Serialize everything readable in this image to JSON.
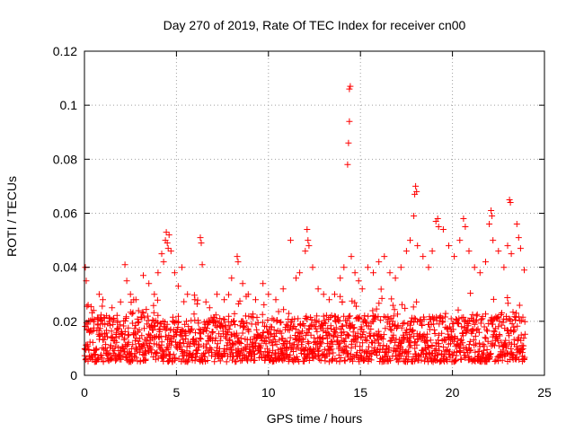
{
  "chart_data": {
    "type": "scatter",
    "title": "Day 270 of 2019, Rate Of TEC Index for receiver cn00",
    "xlabel": "GPS time / hours",
    "ylabel": "ROTI / TECUs",
    "xlim": [
      0,
      25
    ],
    "ylim": [
      0,
      0.12
    ],
    "x_ticks": [
      0,
      5,
      10,
      15,
      20,
      25
    ],
    "y_ticks": [
      0,
      0.02,
      0.04,
      0.06,
      0.08,
      0.1,
      0.12
    ],
    "x_tick_labels": [
      "0",
      "5",
      "10",
      "15",
      "20",
      "25"
    ],
    "y_tick_labels": [
      "0",
      "0.02",
      "0.04",
      "0.06",
      "0.08",
      "0.1",
      "0.12"
    ],
    "grid": true,
    "marker": "plus",
    "color": "#ff0000",
    "series": [
      {
        "name": "ROTI",
        "points": [
          [
            0.05,
            0.04
          ],
          [
            0.1,
            0.035
          ],
          [
            0.2,
            0.026
          ],
          [
            0.5,
            0.024
          ],
          [
            0.8,
            0.03
          ],
          [
            1.0,
            0.028
          ],
          [
            1.2,
            0.022
          ],
          [
            1.5,
            0.025
          ],
          [
            1.8,
            0.02
          ],
          [
            2.2,
            0.041
          ],
          [
            2.3,
            0.035
          ],
          [
            2.5,
            0.03
          ],
          [
            2.8,
            0.028
          ],
          [
            3.2,
            0.037
          ],
          [
            3.5,
            0.034
          ],
          [
            3.8,
            0.03
          ],
          [
            4.0,
            0.038
          ],
          [
            4.2,
            0.045
          ],
          [
            4.3,
            0.042
          ],
          [
            4.4,
            0.05
          ],
          [
            4.45,
            0.053
          ],
          [
            4.5,
            0.049
          ],
          [
            4.55,
            0.047
          ],
          [
            4.6,
            0.052
          ],
          [
            4.7,
            0.046
          ],
          [
            4.9,
            0.038
          ],
          [
            5.1,
            0.033
          ],
          [
            5.3,
            0.04
          ],
          [
            5.6,
            0.03
          ],
          [
            6.0,
            0.028
          ],
          [
            6.3,
            0.051
          ],
          [
            6.35,
            0.049
          ],
          [
            6.4,
            0.041
          ],
          [
            6.8,
            0.025
          ],
          [
            7.2,
            0.03
          ],
          [
            7.6,
            0.028
          ],
          [
            8.0,
            0.036
          ],
          [
            8.3,
            0.044
          ],
          [
            8.35,
            0.042
          ],
          [
            8.6,
            0.034
          ],
          [
            8.9,
            0.03
          ],
          [
            9.3,
            0.028
          ],
          [
            9.7,
            0.034
          ],
          [
            10.0,
            0.03
          ],
          [
            10.4,
            0.028
          ],
          [
            10.8,
            0.032
          ],
          [
            11.2,
            0.05
          ],
          [
            11.5,
            0.036
          ],
          [
            11.7,
            0.038
          ],
          [
            12.0,
            0.046
          ],
          [
            12.1,
            0.054
          ],
          [
            12.15,
            0.05
          ],
          [
            12.2,
            0.048
          ],
          [
            12.4,
            0.04
          ],
          [
            12.7,
            0.032
          ],
          [
            13.0,
            0.03
          ],
          [
            13.3,
            0.028
          ],
          [
            13.6,
            0.03
          ],
          [
            13.9,
            0.036
          ],
          [
            14.1,
            0.04
          ],
          [
            14.3,
            0.078
          ],
          [
            14.35,
            0.086
          ],
          [
            14.4,
            0.094
          ],
          [
            14.4,
            0.106
          ],
          [
            14.45,
            0.107
          ],
          [
            14.5,
            0.044
          ],
          [
            14.7,
            0.038
          ],
          [
            14.9,
            0.035
          ],
          [
            15.1,
            0.032
          ],
          [
            15.4,
            0.04
          ],
          [
            15.7,
            0.038
          ],
          [
            16.0,
            0.042
          ],
          [
            16.3,
            0.044
          ],
          [
            16.6,
            0.038
          ],
          [
            16.9,
            0.036
          ],
          [
            17.2,
            0.04
          ],
          [
            17.5,
            0.046
          ],
          [
            17.7,
            0.05
          ],
          [
            17.9,
            0.059
          ],
          [
            17.95,
            0.067
          ],
          [
            18.0,
            0.07
          ],
          [
            18.05,
            0.068
          ],
          [
            18.1,
            0.048
          ],
          [
            18.4,
            0.044
          ],
          [
            18.7,
            0.04
          ],
          [
            18.9,
            0.046
          ],
          [
            19.1,
            0.057
          ],
          [
            19.2,
            0.058
          ],
          [
            19.25,
            0.055
          ],
          [
            19.5,
            0.054
          ],
          [
            19.8,
            0.048
          ],
          [
            20.1,
            0.044
          ],
          [
            20.4,
            0.05
          ],
          [
            20.6,
            0.058
          ],
          [
            20.7,
            0.055
          ],
          [
            20.9,
            0.046
          ],
          [
            21.2,
            0.04
          ],
          [
            21.5,
            0.038
          ],
          [
            21.8,
            0.042
          ],
          [
            22.0,
            0.056
          ],
          [
            22.1,
            0.061
          ],
          [
            22.15,
            0.059
          ],
          [
            22.2,
            0.05
          ],
          [
            22.5,
            0.046
          ],
          [
            22.8,
            0.04
          ],
          [
            23.0,
            0.048
          ],
          [
            23.1,
            0.065
          ],
          [
            23.15,
            0.064
          ],
          [
            23.2,
            0.045
          ],
          [
            23.5,
            0.056
          ],
          [
            23.6,
            0.051
          ],
          [
            23.7,
            0.047
          ],
          [
            23.9,
            0.039
          ]
        ]
      }
    ],
    "background_band": {
      "description": "dense cluster of ROTI values across the whole day",
      "x_range": [
        0,
        23.95
      ],
      "typical_range": [
        0.005,
        0.022
      ]
    }
  }
}
